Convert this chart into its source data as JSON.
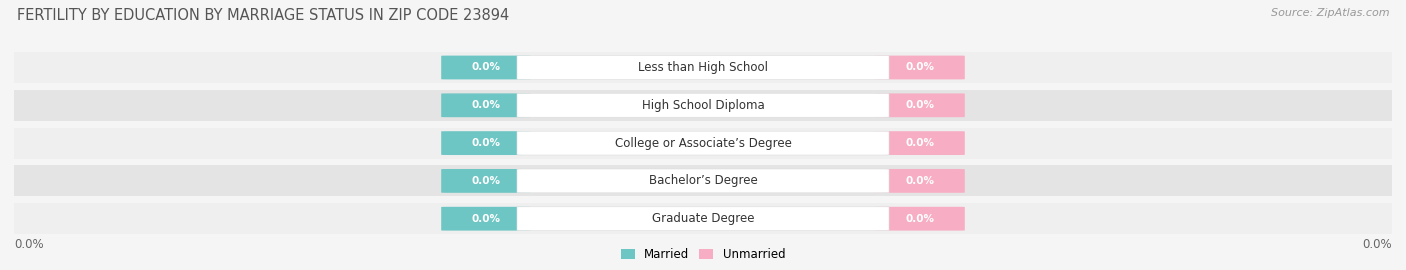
{
  "title": "FERTILITY BY EDUCATION BY MARRIAGE STATUS IN ZIP CODE 23894",
  "source_text": "Source: ZipAtlas.com",
  "categories": [
    "Less than High School",
    "High School Diploma",
    "College or Associate’s Degree",
    "Bachelor’s Degree",
    "Graduate Degree"
  ],
  "married_values": [
    0.0,
    0.0,
    0.0,
    0.0,
    0.0
  ],
  "unmarried_values": [
    0.0,
    0.0,
    0.0,
    0.0,
    0.0
  ],
  "married_color": "#6ec6c4",
  "unmarried_color": "#f7aec4",
  "row_bg_even": "#efefef",
  "row_bg_odd": "#e4e4e4",
  "label_bg_color": "#ffffff",
  "value_label_married": "0.0%",
  "value_label_unmarried": "0.0%",
  "x_tick_left": "0.0%",
  "x_tick_right": "0.0%",
  "legend_married": "Married",
  "legend_unmarried": "Unmarried",
  "background_color": "#f5f5f5",
  "title_fontsize": 10.5,
  "source_fontsize": 8,
  "category_fontsize": 8.5,
  "value_fontsize": 7.5
}
